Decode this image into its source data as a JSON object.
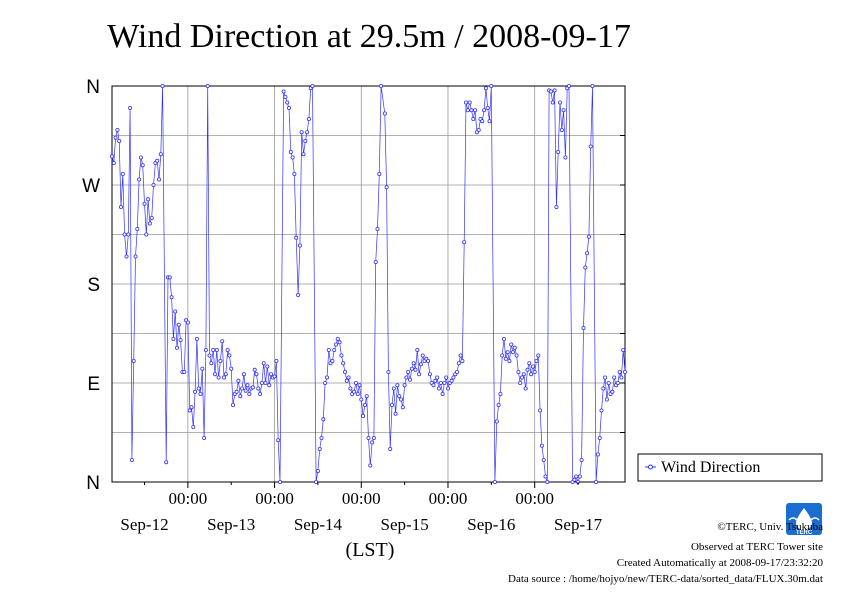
{
  "chart_data": {
    "type": "line",
    "title": "Wind Direction at 29.5m / 2008-09-17",
    "xlabel": "(LST)",
    "ylabel": "",
    "y_ticks": [
      {
        "value": 0,
        "label": "N"
      },
      {
        "value": 90,
        "label": "E"
      },
      {
        "value": 180,
        "label": "S"
      },
      {
        "value": 270,
        "label": "W"
      },
      {
        "value": 360,
        "label": "N"
      }
    ],
    "ylim": [
      0,
      360
    ],
    "xlim_hours": [
      -21,
      121
    ],
    "x_time_ticks": [
      {
        "hours": 0,
        "label": "00:00"
      },
      {
        "hours": 24,
        "label": "00:00"
      },
      {
        "hours": 48,
        "label": "00:00"
      },
      {
        "hours": 72,
        "label": "00:00"
      },
      {
        "hours": 96,
        "label": "00:00"
      }
    ],
    "x_date_labels": [
      {
        "hours": -12,
        "label": "Sep-12"
      },
      {
        "hours": 12,
        "label": "Sep-13"
      },
      {
        "hours": 36,
        "label": "Sep-14"
      },
      {
        "hours": 60,
        "label": "Sep-15"
      },
      {
        "hours": 84,
        "label": "Sep-16"
      },
      {
        "hours": 108,
        "label": "Sep-17"
      }
    ],
    "grid": true,
    "legend_position": "right",
    "series": [
      {
        "name": "Wind Direction",
        "color": "#3333ff",
        "points": [
          [
            -21.0,
            296
          ],
          [
            -20.5,
            290
          ],
          [
            -20.0,
            313
          ],
          [
            -19.5,
            320
          ],
          [
            -19.0,
            310
          ],
          [
            -18.5,
            250
          ],
          [
            -18.0,
            280
          ],
          [
            -17.5,
            225
          ],
          [
            -17.0,
            205
          ],
          [
            -16.5,
            225
          ],
          [
            -16.0,
            340
          ],
          [
            -15.5,
            20
          ],
          [
            -15.0,
            110
          ],
          [
            -14.5,
            205
          ],
          [
            -14.0,
            230
          ],
          [
            -13.5,
            275
          ],
          [
            -13.0,
            295
          ],
          [
            -12.5,
            288
          ],
          [
            -12.0,
            253
          ],
          [
            -11.5,
            225
          ],
          [
            -11.0,
            257
          ],
          [
            -10.5,
            235
          ],
          [
            -10.0,
            240
          ],
          [
            -9.5,
            270
          ],
          [
            -9.0,
            290
          ],
          [
            -8.5,
            292
          ],
          [
            -8.0,
            275
          ],
          [
            -7.5,
            298
          ],
          [
            -7.0,
            360
          ],
          [
            -6.0,
            18
          ],
          [
            -5.5,
            186
          ],
          [
            -5.0,
            186
          ],
          [
            -4.5,
            168
          ],
          [
            -4.0,
            130
          ],
          [
            -3.5,
            155
          ],
          [
            -3.0,
            122
          ],
          [
            -2.5,
            143
          ],
          [
            -2.0,
            129
          ],
          [
            -1.5,
            100
          ],
          [
            -1.0,
            100
          ],
          [
            -0.5,
            147
          ],
          [
            0.0,
            145
          ],
          [
            0.5,
            65
          ],
          [
            1.0,
            68
          ],
          [
            1.5,
            50
          ],
          [
            2.0,
            82
          ],
          [
            2.5,
            130
          ],
          [
            3.0,
            85
          ],
          [
            3.5,
            80
          ],
          [
            4.0,
            103
          ],
          [
            4.5,
            40
          ],
          [
            5.0,
            120
          ],
          [
            5.5,
            360
          ],
          [
            6.0,
            115
          ],
          [
            6.5,
            108
          ],
          [
            7.0,
            120
          ],
          [
            7.5,
            98
          ],
          [
            8.0,
            120
          ],
          [
            8.5,
            95
          ],
          [
            9.0,
            110
          ],
          [
            9.5,
            128
          ],
          [
            10.0,
            95
          ],
          [
            10.5,
            98
          ],
          [
            11.0,
            120
          ],
          [
            11.5,
            115
          ],
          [
            12.0,
            103
          ],
          [
            12.5,
            70
          ],
          [
            13.0,
            80
          ],
          [
            13.5,
            82
          ],
          [
            14.0,
            92
          ],
          [
            14.5,
            78
          ],
          [
            15.0,
            85
          ],
          [
            15.5,
            98
          ],
          [
            16.0,
            83
          ],
          [
            16.5,
            88
          ],
          [
            17.0,
            80
          ],
          [
            17.5,
            85
          ],
          [
            18.0,
            86
          ],
          [
            18.5,
            102
          ],
          [
            19.0,
            98
          ],
          [
            19.5,
            85
          ],
          [
            20.0,
            80
          ],
          [
            20.5,
            90
          ],
          [
            21.0,
            108
          ],
          [
            21.5,
            90
          ],
          [
            22.0,
            105
          ],
          [
            22.5,
            88
          ],
          [
            23.0,
            98
          ],
          [
            23.5,
            95
          ],
          [
            24.0,
            96
          ],
          [
            24.5,
            110
          ],
          [
            25.0,
            38
          ],
          [
            25.5,
            0
          ],
          [
            26.5,
            355
          ],
          [
            27.0,
            350
          ],
          [
            27.5,
            345
          ],
          [
            28.0,
            340
          ],
          [
            28.5,
            300
          ],
          [
            29.0,
            295
          ],
          [
            29.5,
            280
          ],
          [
            30.0,
            222
          ],
          [
            30.5,
            170
          ],
          [
            31.0,
            215
          ],
          [
            31.5,
            318
          ],
          [
            32.0,
            298
          ],
          [
            32.5,
            310
          ],
          [
            33.0,
            318
          ],
          [
            33.5,
            330
          ],
          [
            34.0,
            358
          ],
          [
            34.5,
            360
          ],
          [
            35.5,
            0
          ],
          [
            36.0,
            10
          ],
          [
            36.5,
            30
          ],
          [
            37.0,
            40
          ],
          [
            37.5,
            57
          ],
          [
            38.0,
            90
          ],
          [
            38.5,
            95
          ],
          [
            39.0,
            120
          ],
          [
            39.5,
            108
          ],
          [
            40.0,
            110
          ],
          [
            40.5,
            120
          ],
          [
            41.0,
            125
          ],
          [
            41.5,
            130
          ],
          [
            42.0,
            127
          ],
          [
            42.5,
            115
          ],
          [
            43.0,
            108
          ],
          [
            43.5,
            100
          ],
          [
            44.0,
            92
          ],
          [
            44.5,
            95
          ],
          [
            45.0,
            85
          ],
          [
            45.5,
            80
          ],
          [
            46.0,
            82
          ],
          [
            46.5,
            90
          ],
          [
            47.0,
            80
          ],
          [
            47.5,
            88
          ],
          [
            48.0,
            75
          ],
          [
            48.5,
            60
          ],
          [
            49.0,
            70
          ],
          [
            49.5,
            78
          ],
          [
            50.0,
            40
          ],
          [
            50.5,
            15
          ],
          [
            51.0,
            36
          ],
          [
            51.5,
            40
          ],
          [
            52.0,
            200
          ],
          [
            52.5,
            230
          ],
          [
            53.0,
            280
          ],
          [
            53.5,
            360
          ],
          [
            54.5,
            335
          ],
          [
            55.0,
            268
          ],
          [
            55.5,
            100
          ],
          [
            56.0,
            30
          ],
          [
            56.5,
            70
          ],
          [
            57.0,
            85
          ],
          [
            57.5,
            62
          ],
          [
            58.0,
            88
          ],
          [
            58.5,
            78
          ],
          [
            59.0,
            75
          ],
          [
            59.5,
            68
          ],
          [
            60.0,
            88
          ],
          [
            60.5,
            95
          ],
          [
            61.0,
            100
          ],
          [
            61.5,
            93
          ],
          [
            62.0,
            103
          ],
          [
            62.5,
            108
          ],
          [
            63.0,
            102
          ],
          [
            63.5,
            120
          ],
          [
            64.0,
            98
          ],
          [
            64.5,
            107
          ],
          [
            65.0,
            115
          ],
          [
            65.5,
            110
          ],
          [
            66.0,
            112
          ],
          [
            66.5,
            110
          ],
          [
            67.0,
            98
          ],
          [
            67.5,
            90
          ],
          [
            68.0,
            88
          ],
          [
            68.5,
            92
          ],
          [
            69.0,
            95
          ],
          [
            69.5,
            85
          ],
          [
            70.0,
            90
          ],
          [
            70.5,
            80
          ],
          [
            71.0,
            90
          ],
          [
            71.5,
            95
          ],
          [
            72.0,
            85
          ],
          [
            72.5,
            90
          ],
          [
            73.0,
            92
          ],
          [
            73.5,
            95
          ],
          [
            74.0,
            98
          ],
          [
            74.5,
            100
          ],
          [
            75.0,
            108
          ],
          [
            75.5,
            115
          ],
          [
            76.0,
            110
          ],
          [
            76.5,
            218
          ],
          [
            77.0,
            345
          ],
          [
            77.5,
            338
          ],
          [
            78.0,
            345
          ],
          [
            78.5,
            338
          ],
          [
            79.0,
            330
          ],
          [
            79.5,
            338
          ],
          [
            80.0,
            318
          ],
          [
            80.5,
            320
          ],
          [
            81.0,
            330
          ],
          [
            81.5,
            328
          ],
          [
            82.0,
            338
          ],
          [
            82.5,
            358
          ],
          [
            83.0,
            340
          ],
          [
            83.5,
            328
          ],
          [
            84.0,
            360
          ],
          [
            85.0,
            0
          ],
          [
            85.5,
            55
          ],
          [
            86.0,
            70
          ],
          [
            86.5,
            80
          ],
          [
            87.0,
            115
          ],
          [
            87.5,
            130
          ],
          [
            88.0,
            112
          ],
          [
            88.5,
            118
          ],
          [
            89.0,
            110
          ],
          [
            89.5,
            125
          ],
          [
            90.0,
            118
          ],
          [
            90.5,
            122
          ],
          [
            91.0,
            115
          ],
          [
            91.5,
            100
          ],
          [
            92.0,
            90
          ],
          [
            92.5,
            95
          ],
          [
            93.0,
            98
          ],
          [
            93.5,
            85
          ],
          [
            94.0,
            102
          ],
          [
            94.5,
            108
          ],
          [
            95.0,
            98
          ],
          [
            95.5,
            105
          ],
          [
            96.0,
            100
          ],
          [
            96.5,
            110
          ],
          [
            97.0,
            115
          ],
          [
            97.5,
            65
          ],
          [
            98.0,
            33
          ],
          [
            98.5,
            20
          ],
          [
            99.0,
            5
          ],
          [
            99.5,
            0
          ],
          [
            100.0,
            356
          ],
          [
            100.5,
            355
          ],
          [
            101.0,
            345
          ],
          [
            101.5,
            356
          ],
          [
            102.0,
            250
          ],
          [
            102.5,
            300
          ],
          [
            103.0,
            345
          ],
          [
            103.5,
            320
          ],
          [
            104.0,
            338
          ],
          [
            104.5,
            295
          ],
          [
            105.0,
            358
          ],
          [
            105.5,
            360
          ],
          [
            106.5,
            0
          ],
          [
            107.0,
            2
          ],
          [
            107.5,
            5
          ],
          [
            108.0,
            0
          ],
          [
            108.5,
            5
          ],
          [
            109.0,
            20
          ],
          [
            109.5,
            140
          ],
          [
            110.0,
            195
          ],
          [
            110.5,
            208
          ],
          [
            111.0,
            223
          ],
          [
            111.5,
            305
          ],
          [
            112.0,
            360
          ],
          [
            113.0,
            0
          ],
          [
            113.5,
            25
          ],
          [
            114.0,
            40
          ],
          [
            114.5,
            65
          ],
          [
            115.0,
            85
          ],
          [
            115.5,
            95
          ],
          [
            116.0,
            75
          ],
          [
            116.5,
            90
          ],
          [
            117.0,
            80
          ],
          [
            117.5,
            82
          ],
          [
            118.0,
            95
          ],
          [
            118.5,
            88
          ],
          [
            119.0,
            90
          ],
          [
            119.5,
            100
          ],
          [
            120.0,
            95
          ],
          [
            120.5,
            120
          ],
          [
            121.0,
            100
          ]
        ]
      }
    ]
  },
  "legend": {
    "label": "Wind Direction"
  },
  "credits": {
    "copyright": "©TERC, Univ. Tsukuba",
    "observed": "Observed at TERC Tower site",
    "created": "Created Automatically at 2008-09-17/23:32:20",
    "source": "Data source : /home/hojyo/new/TERC-data/sorted_data/FLUX.30m.dat"
  },
  "logo": {
    "text": "TERC",
    "color": "#1a6ecf"
  }
}
